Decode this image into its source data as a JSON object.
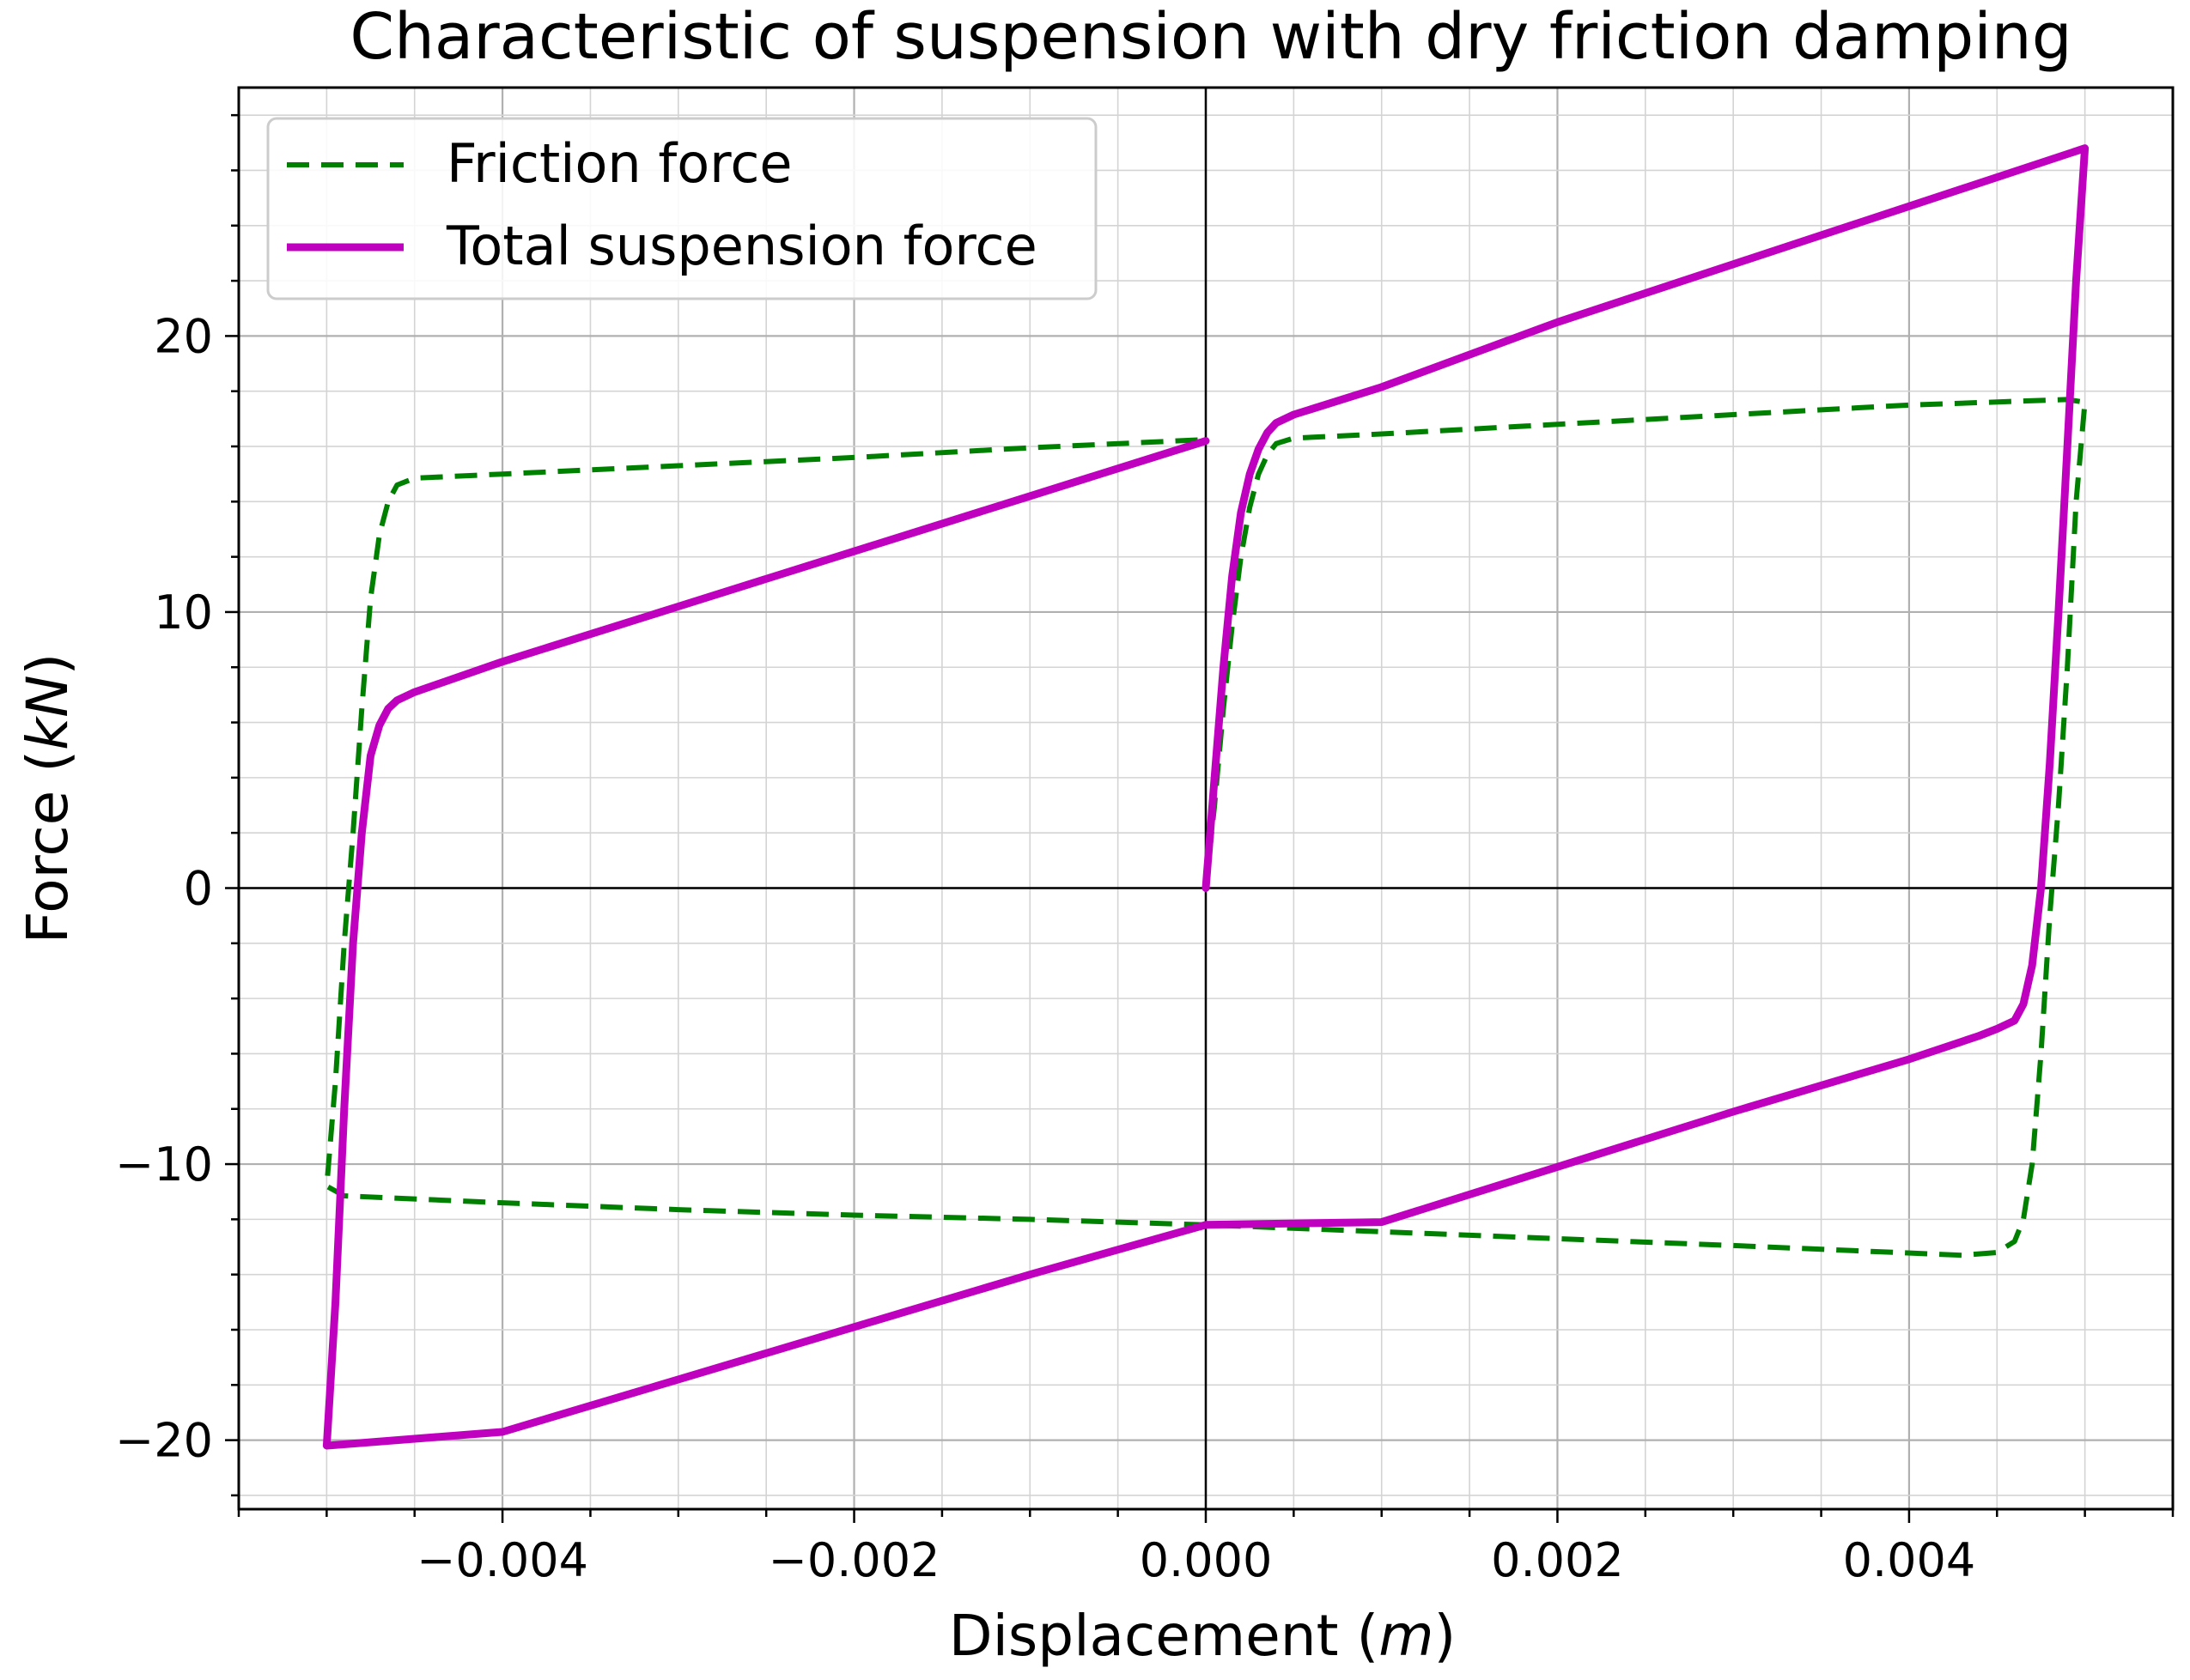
{
  "chart_data": {
    "type": "line",
    "title": "Characteristic of suspension with dry friction damping",
    "xlabel": {
      "prefix": "Displacement  (",
      "unit": "m",
      "suffix": ")"
    },
    "ylabel": {
      "prefix": "Force (",
      "unit": "kN",
      "suffix": ")"
    },
    "xlim": [
      -0.0055,
      0.0055
    ],
    "ylim": [
      -22.5,
      29.0
    ],
    "grid": true,
    "legend_position": "top-left",
    "x_ticks": [
      {
        "value": -0.004,
        "label": "−0.004"
      },
      {
        "value": -0.002,
        "label": "−0.002"
      },
      {
        "value": 0.0,
        "label": "0.000"
      },
      {
        "value": 0.002,
        "label": "0.002"
      },
      {
        "value": 0.004,
        "label": "0.004"
      }
    ],
    "y_ticks": [
      {
        "value": -20,
        "label": "−20"
      },
      {
        "value": -10,
        "label": "−10"
      },
      {
        "value": 0,
        "label": "0"
      },
      {
        "value": 10,
        "label": "10"
      },
      {
        "value": 20,
        "label": "20"
      }
    ],
    "series": [
      {
        "name": "Friction force",
        "color": "#008000",
        "style": "dashed",
        "points": [
          [
            0.0,
            0.0
          ],
          [
            5e-05,
            3.0
          ],
          [
            0.0001,
            6.5
          ],
          [
            0.00015,
            9.5
          ],
          [
            0.0002,
            12.0
          ],
          [
            0.00025,
            13.8
          ],
          [
            0.0003,
            15.0
          ],
          [
            0.00035,
            15.7
          ],
          [
            0.0004,
            16.1
          ],
          [
            0.0005,
            16.3
          ],
          [
            0.001,
            16.45
          ],
          [
            0.002,
            16.8
          ],
          [
            0.003,
            17.15
          ],
          [
            0.004,
            17.5
          ],
          [
            0.0049,
            17.7
          ],
          [
            0.005,
            17.6
          ],
          [
            0.00495,
            14.0
          ],
          [
            0.0049,
            8.0
          ],
          [
            0.00485,
            3.0
          ],
          [
            0.0048,
            -1.0
          ],
          [
            0.00475,
            -6.0
          ],
          [
            0.0047,
            -10.0
          ],
          [
            0.00465,
            -12.0
          ],
          [
            0.0046,
            -12.8
          ],
          [
            0.0045,
            -13.2
          ],
          [
            0.0043,
            -13.3
          ],
          [
            0.003,
            -12.95
          ],
          [
            0.002,
            -12.7
          ],
          [
            0.001,
            -12.45
          ],
          [
            0.0,
            -12.2
          ],
          [
            -0.001,
            -12.0
          ],
          [
            -0.002,
            -11.85
          ],
          [
            -0.003,
            -11.65
          ],
          [
            -0.004,
            -11.4
          ],
          [
            -0.0049,
            -11.15
          ],
          [
            -0.005,
            -10.8
          ],
          [
            -0.00495,
            -7.0
          ],
          [
            -0.0049,
            -2.0
          ],
          [
            -0.00485,
            2.0
          ],
          [
            -0.0048,
            6.5
          ],
          [
            -0.00475,
            10.5
          ],
          [
            -0.0047,
            12.8
          ],
          [
            -0.00465,
            14.0
          ],
          [
            -0.0046,
            14.6
          ],
          [
            -0.0045,
            14.85
          ],
          [
            -0.004,
            15.0
          ],
          [
            -0.003,
            15.3
          ],
          [
            -0.002,
            15.6
          ],
          [
            -0.001,
            15.95
          ],
          [
            0.0,
            16.25
          ]
        ]
      },
      {
        "name": "Total suspension force",
        "color": "#bf00bf",
        "style": "solid",
        "points": [
          [
            0.0,
            0.0
          ],
          [
            5e-05,
            4.0
          ],
          [
            0.0001,
            8.0
          ],
          [
            0.00015,
            11.3
          ],
          [
            0.0002,
            13.6
          ],
          [
            0.00025,
            15.0
          ],
          [
            0.0003,
            15.9
          ],
          [
            0.00035,
            16.5
          ],
          [
            0.0004,
            16.85
          ],
          [
            0.0005,
            17.15
          ],
          [
            0.001,
            18.15
          ],
          [
            0.002,
            20.5
          ],
          [
            0.003,
            22.6
          ],
          [
            0.004,
            24.7
          ],
          [
            0.005,
            26.8
          ],
          [
            0.00495,
            22.0
          ],
          [
            0.0049,
            16.0
          ],
          [
            0.00485,
            10.0
          ],
          [
            0.0048,
            4.5
          ],
          [
            0.00475,
            0.0
          ],
          [
            0.0047,
            -2.8
          ],
          [
            0.00465,
            -4.2
          ],
          [
            0.0046,
            -4.8
          ],
          [
            0.0045,
            -5.1
          ],
          [
            0.0044,
            -5.35
          ],
          [
            0.004,
            -6.2
          ],
          [
            0.003,
            -8.1
          ],
          [
            0.002,
            -10.1
          ],
          [
            0.001,
            -12.1
          ],
          [
            0.0,
            -12.2
          ],
          [
            -0.001,
            -14.0
          ],
          [
            -0.002,
            -15.9
          ],
          [
            -0.003,
            -17.8
          ],
          [
            -0.004,
            -19.7
          ],
          [
            -0.005,
            -20.2
          ],
          [
            -0.00495,
            -15.0
          ],
          [
            -0.0049,
            -8.0
          ],
          [
            -0.00485,
            -2.0
          ],
          [
            -0.0048,
            2.0
          ],
          [
            -0.00475,
            4.8
          ],
          [
            -0.0047,
            5.9
          ],
          [
            -0.00465,
            6.5
          ],
          [
            -0.0046,
            6.8
          ],
          [
            -0.0045,
            7.1
          ],
          [
            -0.004,
            8.2
          ],
          [
            -0.003,
            10.2
          ],
          [
            -0.002,
            12.2
          ],
          [
            -0.001,
            14.2
          ],
          [
            0.0,
            16.2
          ]
        ]
      }
    ]
  }
}
